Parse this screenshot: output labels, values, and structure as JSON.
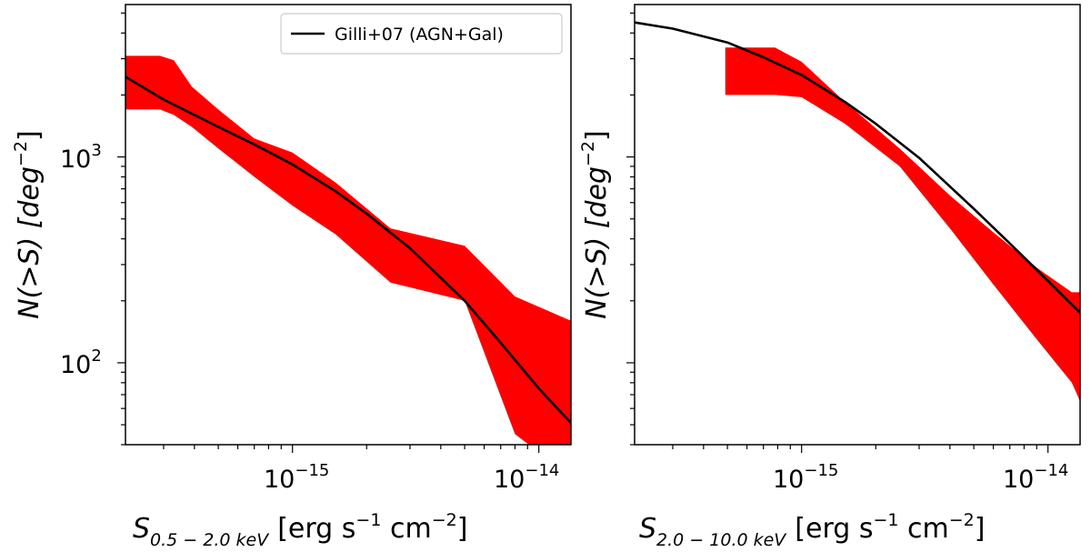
{
  "chart_data": [
    {
      "type": "area",
      "title": "",
      "xlabel": {
        "main": "S",
        "sub": "0.5 − 2.0 keV",
        "units": "[erg s",
        "exp1": "−1",
        "mid": " cm",
        "exp2": "−2",
        "close": "]"
      },
      "ylabel": {
        "main": "N(>S) [deg",
        "exp": "−2",
        "close": "]"
      },
      "xscale": "log",
      "yscale": "log",
      "xlim": [
        2.1e-16,
        1.35e-14
      ],
      "ylim": [
        40,
        5500
      ],
      "xticks": [
        {
          "value": 1e-15,
          "base": "10",
          "exp": "−15"
        },
        {
          "value": 1e-14,
          "base": "10",
          "exp": "−14"
        }
      ],
      "yticks": [
        {
          "value": 100,
          "base": "10",
          "exp": "2"
        },
        {
          "value": 1000,
          "base": "10",
          "exp": "3"
        }
      ],
      "grid": false,
      "series": [
        {
          "name": "Observed N(>S) band",
          "kind": "band",
          "color": "#ff0000",
          "x": [
            2.1e-16,
            2.9e-16,
            3.3e-16,
            3.9e-16,
            5e-16,
            7e-16,
            1e-15,
            1.5e-15,
            2.5e-15,
            5e-15,
            8e-15,
            1.35e-14
          ],
          "upper": [
            3100,
            3100,
            2950,
            2200,
            1700,
            1230,
            1050,
            750,
            450,
            370,
            210,
            160
          ],
          "lower": [
            1700,
            1700,
            1600,
            1400,
            1100,
            800,
            580,
            420,
            245,
            200,
            45,
            28
          ]
        },
        {
          "name": "Gilli+07 (AGN+Gal)",
          "kind": "line",
          "color": "#000000",
          "x": [
            2.1e-16,
            3e-16,
            5e-16,
            7e-16,
            1e-15,
            1.5e-15,
            2e-15,
            3e-15,
            5e-15,
            7e-15,
            1e-14,
            1.35e-14
          ],
          "y": [
            2450,
            1900,
            1400,
            1150,
            920,
            680,
            530,
            360,
            200,
            125,
            75,
            51
          ]
        }
      ],
      "legend": {
        "position": "top-right",
        "entries": [
          "Gilli+07 (AGN+Gal)"
        ]
      }
    },
    {
      "type": "area",
      "title": "",
      "xlabel": {
        "main": "S",
        "sub": "2.0 − 10.0 keV",
        "units": "[erg s",
        "exp1": "−1",
        "mid": " cm",
        "exp2": "−2",
        "close": "]"
      },
      "ylabel": {
        "main": "N(>S) [deg",
        "exp": "−2",
        "close": "]"
      },
      "xscale": "log",
      "yscale": "log",
      "xlim": [
        2.1e-16,
        1.35e-14
      ],
      "ylim": [
        40,
        5500
      ],
      "xticks": [
        {
          "value": 1e-15,
          "base": "10",
          "exp": "−15"
        },
        {
          "value": 1e-14,
          "base": "10",
          "exp": "−14"
        }
      ],
      "yticks": [],
      "grid": false,
      "series": [
        {
          "name": "Observed N(>S) band",
          "kind": "band",
          "color": "#ff0000",
          "x": [
            4.9e-16,
            7.8e-16,
            1e-15,
            1.5e-15,
            2.5e-15,
            4e-15,
            6e-15,
            9e-15,
            1.25e-14,
            1.35e-14
          ],
          "upper": [
            3400,
            3400,
            2900,
            1850,
            1100,
            650,
            430,
            290,
            220,
            220
          ],
          "lower": [
            2000,
            2000,
            1950,
            1450,
            900,
            450,
            240,
            130,
            80,
            65
          ]
        },
        {
          "name": "Gilli+07 (AGN+Gal)",
          "kind": "line",
          "color": "#000000",
          "x": [
            2.1e-16,
            3e-16,
            5e-16,
            7e-16,
            1e-15,
            1.5e-15,
            2e-15,
            3e-15,
            5e-15,
            7e-15,
            1e-14,
            1.35e-14
          ],
          "y": [
            4500,
            4200,
            3600,
            3050,
            2500,
            1850,
            1450,
            990,
            560,
            380,
            250,
            175
          ]
        }
      ],
      "legend": null
    }
  ]
}
